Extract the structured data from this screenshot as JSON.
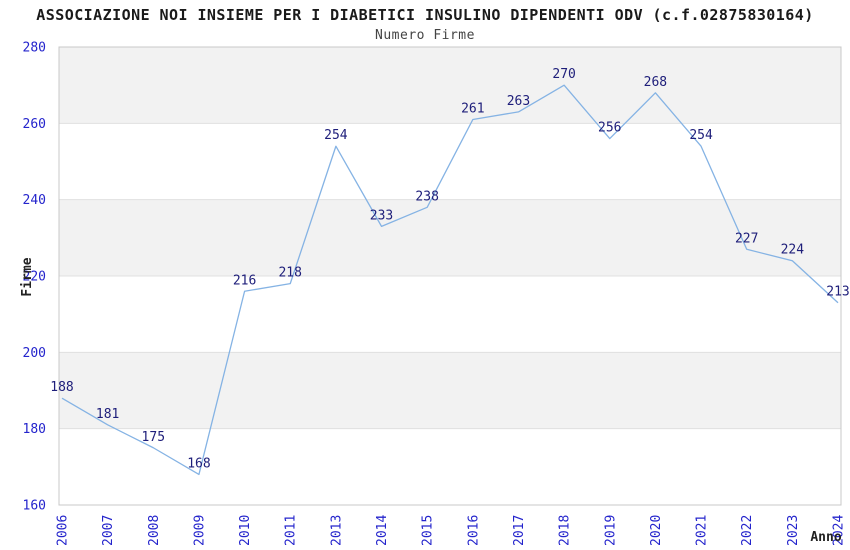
{
  "title": "ASSOCIAZIONE NOI INSIEME PER I DIABETICI INSULINO DIPENDENTI ODV (c.f.02875830164)",
  "subtitle": "Numero Firme",
  "chart_data": {
    "type": "line",
    "title": "ASSOCIAZIONE NOI INSIEME PER I DIABETICI INSULINO DIPENDENTI ODV (c.f.02875830164)",
    "subtitle": "Numero Firme",
    "xlabel": "Anno",
    "ylabel": "Firme",
    "categories": [
      "2006",
      "2007",
      "2008",
      "2009",
      "2010",
      "2011",
      "2013",
      "2014",
      "2015",
      "2016",
      "2017",
      "2018",
      "2019",
      "2020",
      "2021",
      "2022",
      "2023",
      "2024"
    ],
    "values": [
      188,
      181,
      175,
      168,
      216,
      218,
      254,
      233,
      238,
      261,
      263,
      270,
      256,
      268,
      254,
      227,
      224,
      213
    ],
    "ylim": [
      160,
      280
    ],
    "ytick_step": 20,
    "yticks": [
      160,
      180,
      200,
      220,
      240,
      260,
      280
    ],
    "grid": true,
    "banded_background": true,
    "point_labels_visible": true,
    "markers": false,
    "legend_position": "none",
    "note": "year 2012 absent from series"
  },
  "colors": {
    "background": "#ffffff",
    "band": "#f2f2f2",
    "grid_line": "#e0e0e0",
    "plot_border": "#c8c8c8",
    "line": "#85b3e4",
    "tick_label": "#2424cc",
    "point_label": "#1e1e7a",
    "title": "#1a1a1a",
    "subtitle": "#444444",
    "axis_label": "#222222"
  }
}
